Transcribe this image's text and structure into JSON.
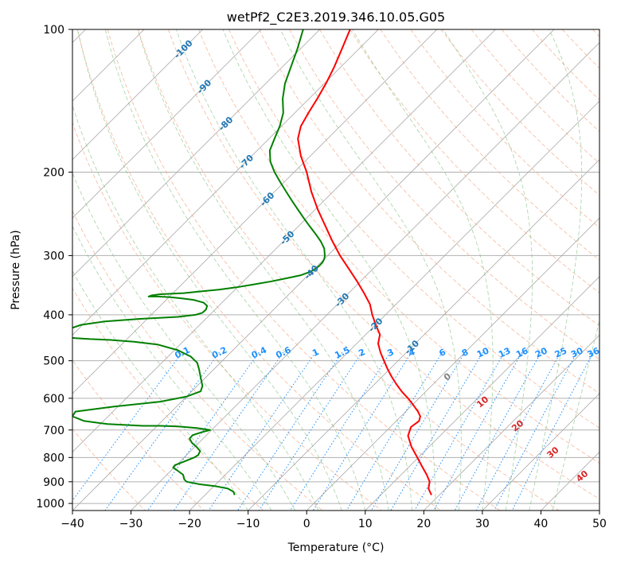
{
  "chart_data": {
    "type": "line",
    "title": "wetPf2_C2E3.2019.346.10.05.G05",
    "xlabel": "Temperature (°C)",
    "ylabel": "Pressure (hPa)",
    "xlim": [
      -40,
      50
    ],
    "ylim": [
      1035,
      100
    ],
    "y_scale": "log",
    "grid": true,
    "x_ticks": [
      "−40",
      "−30",
      "−20",
      "−10",
      "0",
      "10",
      "20",
      "30",
      "40",
      "50"
    ],
    "y_ticks": [
      {
        "value": 100,
        "label": "100"
      },
      {
        "value": 200,
        "label": "200"
      },
      {
        "value": 300,
        "label": "300"
      },
      {
        "value": 400,
        "label": "400"
      },
      {
        "value": 500,
        "label": "500"
      },
      {
        "value": 600,
        "label": "600"
      },
      {
        "value": 700,
        "label": "700"
      },
      {
        "value": 800,
        "label": "800"
      },
      {
        "value": 900,
        "label": "900"
      },
      {
        "value": 1000,
        "label": "1000"
      }
    ],
    "series": [
      {
        "color": "#ff0000",
        "p": [
          960,
          930,
          900,
          870,
          840,
          800,
          760,
          720,
          690,
          670,
          655,
          640,
          620,
          600,
          580,
          560,
          540,
          520,
          500,
          480,
          460,
          440,
          420,
          400,
          380,
          360,
          340,
          320,
          300,
          280,
          260,
          240,
          220,
          200,
          185,
          170,
          160,
          150,
          140,
          130,
          120,
          110,
          100
        ],
        "t": [
          21.3,
          20.8,
          21.0,
          20.5,
          19.8,
          18.9,
          17.9,
          17.3,
          17.8,
          19.2,
          19.4,
          19.0,
          18.2,
          17.3,
          16.2,
          15.3,
          14.5,
          13.8,
          13.2,
          12.6,
          12.2,
          12.5,
          11.8,
          11.2,
          10.8,
          9.8,
          8.6,
          7.2,
          5.7,
          4.4,
          3.2,
          1.9,
          0.8,
          0.0,
          -1.0,
          -1.5,
          -1.0,
          0.3,
          1.8,
          3.3,
          4.7,
          6.0,
          7.4
        ]
      },
      {
        "color": "#008000",
        "p": [
          960,
          945,
          930,
          920,
          910,
          900,
          890,
          870,
          850,
          840,
          830,
          815,
          800,
          790,
          775,
          760,
          745,
          730,
          718,
          708,
          700,
          693,
          688,
          686,
          686,
          680,
          670,
          655,
          640,
          625,
          610,
          595,
          580,
          565,
          550,
          535,
          520,
          505,
          490,
          475,
          462,
          456,
          452,
          450,
          448,
          447,
          445,
          440,
          430,
          420,
          413,
          408,
          404,
          400,
          396,
          390,
          383,
          377,
          372,
          369,
          367,
          366,
          366,
          364,
          362,
          360,
          357,
          354,
          350,
          345,
          340,
          335,
          330,
          325,
          320,
          315,
          310,
          305,
          300,
          290,
          280,
          270,
          260,
          250,
          240,
          230,
          220,
          210,
          200,
          190,
          180,
          170,
          160,
          150,
          140,
          130,
          120,
          110,
          100
        ],
        "t": [
          -12.3,
          -12.5,
          -13.5,
          -15.5,
          -18.5,
          -20.5,
          -20.9,
          -21.1,
          -22.2,
          -22.8,
          -22.5,
          -20.8,
          -19.2,
          -18.5,
          -18.2,
          -18.8,
          -19.6,
          -20.0,
          -19.5,
          -18.0,
          -16.5,
          -18.8,
          -22.0,
          -25.0,
          -28.0,
          -34.0,
          -38.0,
          -40.0,
          -39.5,
          -33.0,
          -25.0,
          -20.5,
          -18.1,
          -17.8,
          -18.0,
          -18.2,
          -18.4,
          -18.7,
          -19.8,
          -22.0,
          -25.5,
          -29.5,
          -33.5,
          -37.0,
          -39.5,
          -40.5,
          -41.5,
          -42.0,
          -41.0,
          -38.5,
          -34.5,
          -28.5,
          -22.0,
          -19.0,
          -17.8,
          -17.2,
          -17.0,
          -17.6,
          -19.3,
          -21.6,
          -23.5,
          -25.5,
          -27.0,
          -26.5,
          -25.0,
          -21.0,
          -18.0,
          -15.0,
          -12.0,
          -9.0,
          -6.0,
          -3.5,
          -1.0,
          0.5,
          1.5,
          2.2,
          2.7,
          3.0,
          3.1,
          3.0,
          2.4,
          1.5,
          0.5,
          -0.5,
          -1.5,
          -2.5,
          -3.5,
          -4.5,
          -5.5,
          -6.2,
          -6.3,
          -5.5,
          -4.6,
          -4.0,
          -4.1,
          -3.7,
          -2.7,
          -1.6,
          -0.6
        ]
      }
    ],
    "dry_adiabat_labels": [
      "-100",
      "-90",
      "-80",
      "-70",
      "-60",
      "-50",
      "-40",
      "-30",
      "-20",
      "-10"
    ],
    "moist_adiabat_labels": [
      "0",
      "10",
      "20",
      "30",
      "40"
    ],
    "mixing_ratio_labels": [
      "0.1",
      "0.2",
      "0.4",
      "0.6",
      "1",
      "1.5",
      "2",
      "3",
      "4",
      "6",
      "8",
      "10",
      "13",
      "16",
      "20",
      "25",
      "30",
      "36"
    ]
  }
}
